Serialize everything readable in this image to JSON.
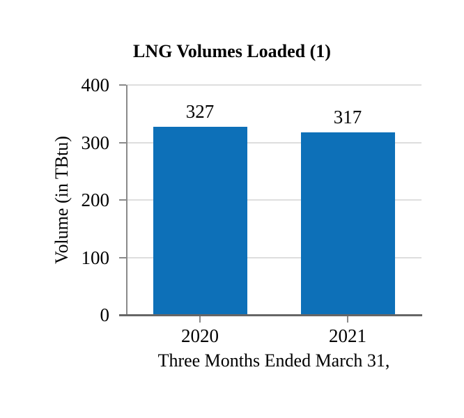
{
  "chart_data": {
    "type": "bar",
    "title": "LNG Volumes Loaded (1)",
    "categories": [
      "2020",
      "2021"
    ],
    "values": [
      327,
      317
    ],
    "data_labels": [
      "327",
      "317"
    ],
    "xlabel": "Three Months Ended March 31,",
    "ylabel": "Volume (in TBtu)",
    "ylim": [
      0,
      400
    ],
    "yticks": [
      0,
      100,
      200,
      300,
      400
    ],
    "ytick_labels": [
      "0",
      "100",
      "200",
      "300",
      "400"
    ],
    "grid": true,
    "legend_position": "none",
    "colors": {
      "bar": "#0d70b8",
      "gridline": "#dedede",
      "axis": "#8a8a8a",
      "baseline": "#666666",
      "text": "#000000",
      "background": "#ffffff"
    }
  }
}
